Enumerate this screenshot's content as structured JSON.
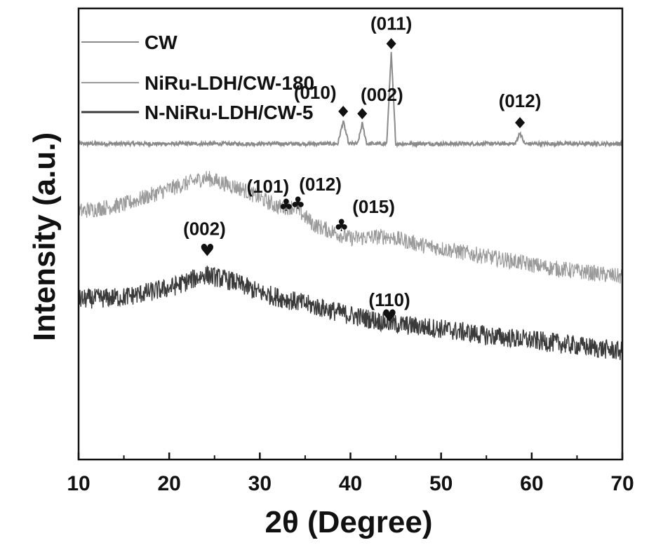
{
  "chart_data": {
    "type": "line",
    "title": "",
    "xlabel": "2θ (Degree)",
    "ylabel": "Intensity (a.u.)",
    "xlim": [
      10,
      70
    ],
    "x_ticks": [
      "10",
      "20",
      "30",
      "40",
      "50",
      "60",
      "70"
    ],
    "y_ticks_labeled": false,
    "grid": false,
    "legend_position": "top-left",
    "series": [
      {
        "name": "CW",
        "color": "#8a8a8a",
        "marker_symbol": "diamond",
        "points": [
          [
            10,
            0.7
          ],
          [
            38.6,
            0.7
          ],
          [
            39.2,
            0.75
          ],
          [
            39.8,
            0.7
          ],
          [
            40.8,
            0.7
          ],
          [
            41.3,
            0.745
          ],
          [
            41.8,
            0.7
          ],
          [
            44.0,
            0.7
          ],
          [
            44.5,
            0.9
          ],
          [
            45.0,
            0.7
          ],
          [
            58.2,
            0.7
          ],
          [
            58.7,
            0.725
          ],
          [
            59.2,
            0.7
          ],
          [
            70,
            0.7
          ]
        ],
        "peaks": [
          {
            "x": 39.2,
            "y": 0.75,
            "label": "(010)"
          },
          {
            "x": 41.3,
            "y": 0.745,
            "label": "(002)"
          },
          {
            "x": 44.5,
            "y": 0.9,
            "label": "(011)"
          },
          {
            "x": 58.7,
            "y": 0.725,
            "label": "(012)"
          }
        ]
      },
      {
        "name": "NiRu-LDH/CW-180",
        "color": "#9a9a9a",
        "marker_symbol": "club",
        "points": [
          [
            10,
            0.55
          ],
          [
            15,
            0.565
          ],
          [
            20,
            0.6
          ],
          [
            24,
            0.625
          ],
          [
            28,
            0.6
          ],
          [
            32,
            0.56
          ],
          [
            33.8,
            0.56
          ],
          [
            36,
            0.52
          ],
          [
            40,
            0.49
          ],
          [
            44,
            0.495
          ],
          [
            48,
            0.475
          ],
          [
            55,
            0.45
          ],
          [
            62,
            0.425
          ],
          [
            70,
            0.405
          ]
        ],
        "peaks": [
          {
            "x": 32.9,
            "y": 0.545,
            "label": "(101)"
          },
          {
            "x": 34.2,
            "y": 0.55,
            "label": "(012)"
          },
          {
            "x": 39.0,
            "y": 0.5,
            "label": "(015)"
          }
        ]
      },
      {
        "name": "N-NiRu-LDH/CW-5",
        "color": "#3a3a3a",
        "marker_symbol": "heart",
        "points": [
          [
            10,
            0.355
          ],
          [
            15,
            0.36
          ],
          [
            20,
            0.38
          ],
          [
            24,
            0.41
          ],
          [
            27,
            0.395
          ],
          [
            30,
            0.37
          ],
          [
            35,
            0.345
          ],
          [
            40,
            0.32
          ],
          [
            45,
            0.3
          ],
          [
            50,
            0.29
          ],
          [
            55,
            0.275
          ],
          [
            62,
            0.26
          ],
          [
            70,
            0.24
          ]
        ],
        "peaks": [
          {
            "x": 24.2,
            "y": 0.445,
            "label": "(002)"
          },
          {
            "x": 44.3,
            "y": 0.3,
            "label": "(110)"
          }
        ]
      }
    ]
  }
}
